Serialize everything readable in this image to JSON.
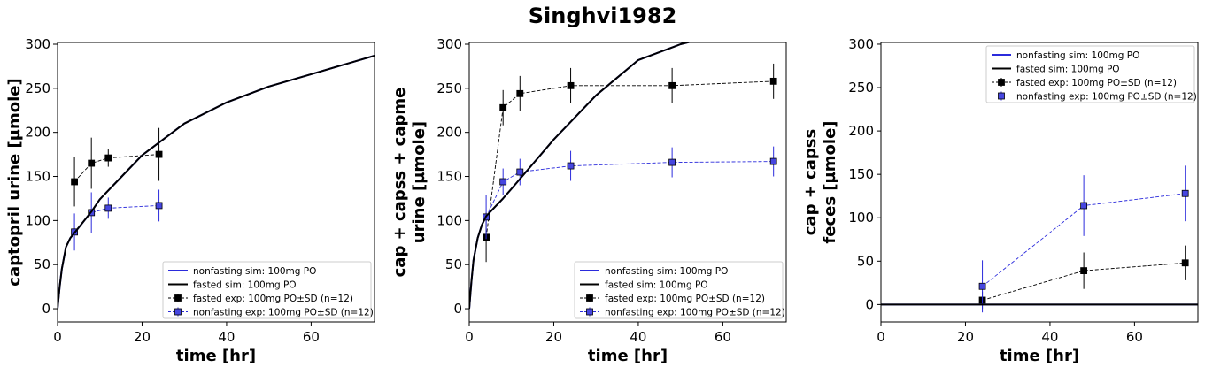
{
  "figure": {
    "title": "Singhvi1982"
  },
  "colors": {
    "nonfasting": "#2b2bdc",
    "fasted": "#000000",
    "marker_nonfasting": "#4646e0"
  },
  "chart_data": [
    {
      "type": "line",
      "xlabel": "time [hr]",
      "ylabel": [
        "captopril urine [µmole]"
      ],
      "xlim": [
        0,
        75
      ],
      "ylim": [
        -15,
        302
      ],
      "xticks": [
        0,
        20,
        40,
        60
      ],
      "yticks": [
        0,
        50,
        100,
        150,
        200,
        250,
        300
      ],
      "legend_position": "lower-right",
      "series": [
        {
          "name": "nonfasting sim: 100mg PO",
          "kind": "sim",
          "color": "#2b2bdc",
          "x": [
            0,
            0.5,
            1,
            2,
            3,
            4,
            6,
            8,
            10,
            15,
            20,
            30,
            40,
            50,
            60,
            75
          ],
          "y": [
            0,
            25,
            45,
            70,
            80,
            86,
            98,
            110,
            124,
            149,
            174,
            210,
            234,
            252,
            266,
            287
          ]
        },
        {
          "name": "fasted sim: 100mg PO",
          "kind": "sim",
          "color": "#000000",
          "x": [
            0,
            0.5,
            1,
            2,
            3,
            4,
            6,
            8,
            10,
            15,
            20,
            30,
            40,
            50,
            60,
            75
          ],
          "y": [
            0,
            25,
            45,
            70,
            80,
            86,
            98,
            110,
            124,
            149,
            174,
            210,
            234,
            252,
            266,
            287
          ]
        },
        {
          "name": "fasted exp: 100mg PO±SD (n=12)",
          "kind": "exp",
          "color": "#000000",
          "marker_fill": "#000000",
          "x": [
            4,
            8,
            12,
            24
          ],
          "y": [
            144,
            165,
            171,
            175
          ],
          "err": [
            28,
            29,
            10,
            30
          ]
        },
        {
          "name": "nonfasting exp: 100mg PO±SD (n=12)",
          "kind": "exp",
          "color": "#2b2bdc",
          "marker_fill": "#4646e0",
          "x": [
            4,
            8,
            12,
            24
          ],
          "y": [
            87,
            109,
            114,
            117
          ],
          "err": [
            21,
            23,
            12,
            18
          ]
        }
      ]
    },
    {
      "type": "line",
      "xlabel": "time [hr]",
      "ylabel": [
        "cap + capss + capme",
        "urine [µmole]"
      ],
      "xlim": [
        0,
        75
      ],
      "ylim": [
        -15,
        302
      ],
      "xticks": [
        0,
        20,
        40,
        60
      ],
      "yticks": [
        0,
        50,
        100,
        150,
        200,
        250,
        300
      ],
      "legend_position": "lower-right",
      "series": [
        {
          "name": "nonfasting sim: 100mg PO",
          "kind": "sim",
          "color": "#2b2bdc",
          "x": [
            0,
            0.5,
            1,
            2,
            3,
            4,
            6,
            8,
            10,
            15,
            20,
            30,
            40,
            50,
            60
          ],
          "y": [
            0,
            30,
            55,
            80,
            95,
            105,
            115,
            125,
            136,
            164,
            192,
            242,
            282,
            300,
            312
          ]
        },
        {
          "name": "fasted sim: 100mg PO",
          "kind": "sim",
          "color": "#000000",
          "x": [
            0,
            0.5,
            1,
            2,
            3,
            4,
            6,
            8,
            10,
            15,
            20,
            30,
            40,
            50,
            60
          ],
          "y": [
            0,
            30,
            55,
            80,
            95,
            105,
            115,
            125,
            136,
            164,
            192,
            242,
            282,
            300,
            312
          ]
        },
        {
          "name": "fasted exp: 100mg PO±SD (n=12)",
          "kind": "exp",
          "color": "#000000",
          "marker_fill": "#000000",
          "x": [
            4,
            8,
            12,
            24,
            48,
            72
          ],
          "y": [
            81,
            228,
            244,
            253,
            253,
            258
          ],
          "err": [
            28,
            20,
            20,
            20,
            20,
            20
          ]
        },
        {
          "name": "nonfasting exp: 100mg PO±SD (n=12)",
          "kind": "exp",
          "color": "#2b2bdc",
          "marker_fill": "#4646e0",
          "x": [
            4,
            8,
            12,
            24,
            48,
            72
          ],
          "y": [
            104,
            144,
            155,
            162,
            166,
            167
          ],
          "err": [
            25,
            15,
            15,
            17,
            17,
            17
          ]
        }
      ]
    },
    {
      "type": "line",
      "xlabel": "time [hr]",
      "ylabel": [
        "cap + capss",
        "feces [µmole]"
      ],
      "xlim": [
        0,
        75
      ],
      "ylim": [
        -20,
        302
      ],
      "xticks": [
        0,
        20,
        40,
        60
      ],
      "yticks": [
        0,
        50,
        100,
        150,
        200,
        250,
        300
      ],
      "legend_position": "upper-right",
      "series": [
        {
          "name": "nonfasting sim: 100mg PO",
          "kind": "sim",
          "color": "#2b2bdc",
          "x": [
            0,
            75
          ],
          "y": [
            0,
            0
          ]
        },
        {
          "name": "fasted sim: 100mg PO",
          "kind": "sim",
          "color": "#000000",
          "x": [
            0,
            75
          ],
          "y": [
            0,
            0
          ]
        },
        {
          "name": "fasted exp: 100mg PO±SD (n=12)",
          "kind": "exp",
          "color": "#000000",
          "marker_fill": "#000000",
          "x": [
            24,
            48,
            72
          ],
          "y": [
            5,
            39,
            48
          ],
          "err": [
            10,
            21,
            20
          ]
        },
        {
          "name": "nonfasting exp: 100mg PO±SD (n=12)",
          "kind": "exp",
          "color": "#2b2bdc",
          "marker_fill": "#4646e0",
          "x": [
            24,
            48,
            72
          ],
          "y": [
            21,
            114,
            128
          ],
          "err": [
            30,
            35,
            32
          ]
        }
      ]
    }
  ]
}
